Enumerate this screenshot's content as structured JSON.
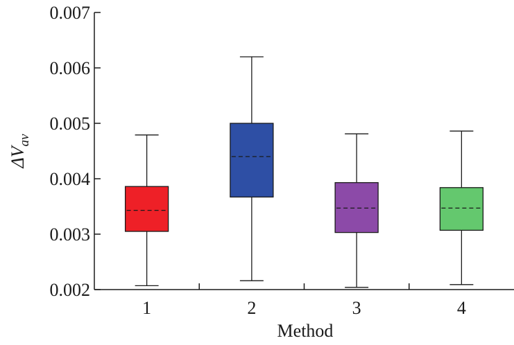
{
  "chart_data": {
    "type": "box",
    "xlabel": "Method",
    "ylabel": {
      "symbol": "ΔV",
      "subscript": "av"
    },
    "ylim": [
      0.002,
      0.007
    ],
    "yticks": [
      "0.002",
      "0.003",
      "0.004",
      "0.005",
      "0.006",
      "0.007"
    ],
    "categories": [
      "1",
      "2",
      "3",
      "4"
    ],
    "boxes": [
      {
        "category": "1",
        "whisker_low": 0.00207,
        "q1": 0.00305,
        "median": 0.00343,
        "q3": 0.00386,
        "whisker_high": 0.00479,
        "color": "#ee2027"
      },
      {
        "category": "2",
        "whisker_low": 0.00216,
        "q1": 0.00367,
        "median": 0.0044,
        "q3": 0.005,
        "whisker_high": 0.0062,
        "color": "#2e4fa5"
      },
      {
        "category": "3",
        "whisker_low": 0.00204,
        "q1": 0.00303,
        "median": 0.00347,
        "q3": 0.00393,
        "whisker_high": 0.00481,
        "color": "#8c4aa8"
      },
      {
        "category": "4",
        "whisker_low": 0.00209,
        "q1": 0.00307,
        "median": 0.00347,
        "q3": 0.00384,
        "whisker_high": 0.00486,
        "color": "#64c86e"
      }
    ],
    "median_line_style": "dashed",
    "grid": false,
    "legend": "none"
  }
}
